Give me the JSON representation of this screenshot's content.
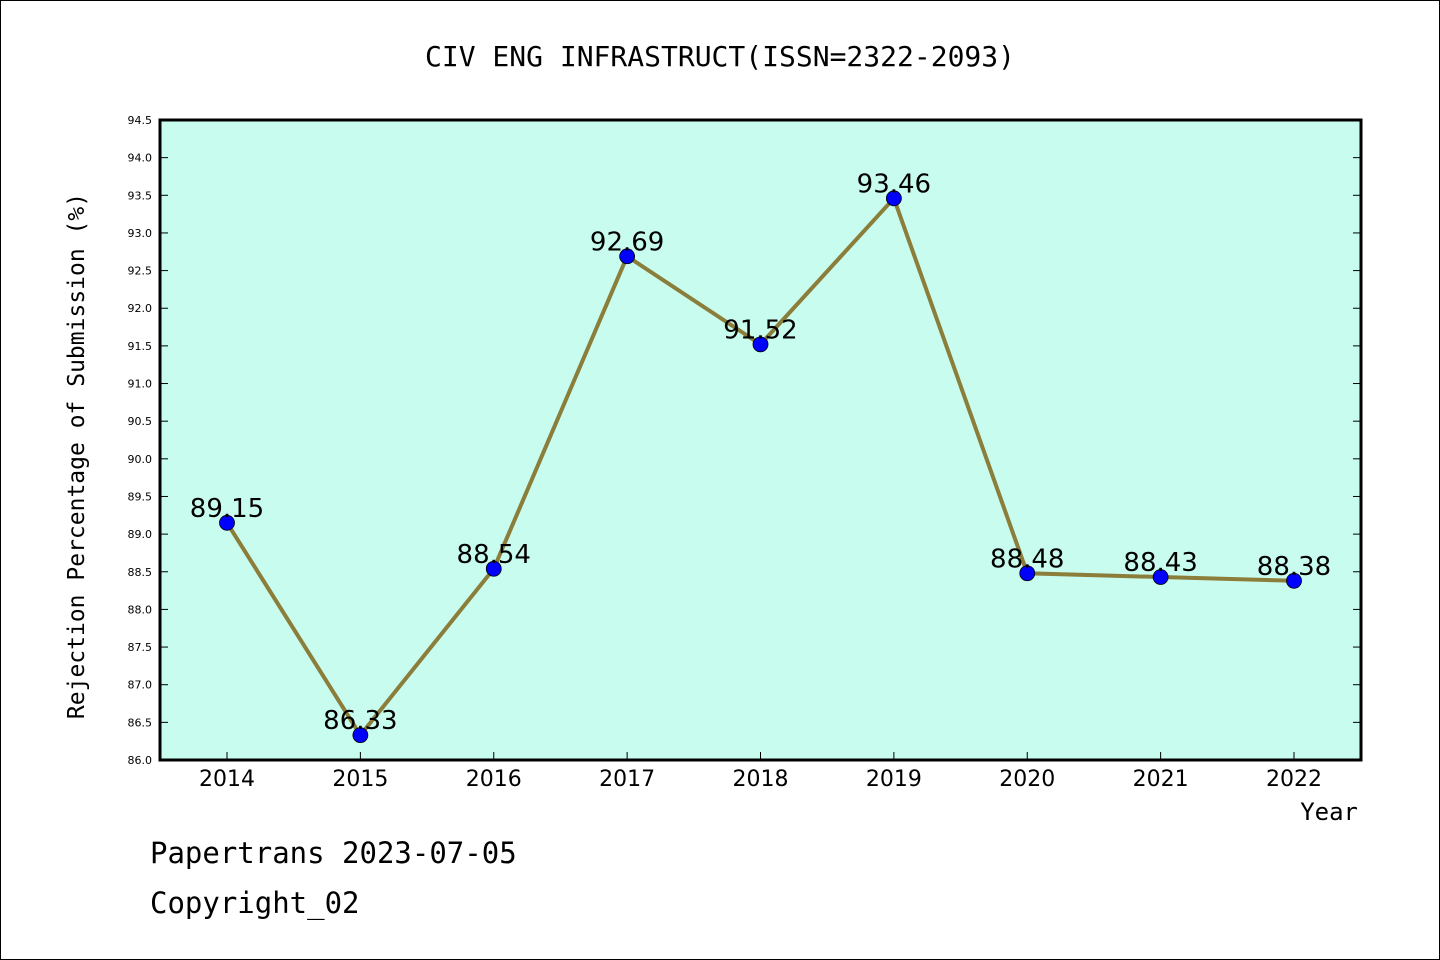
{
  "chart_data": {
    "type": "line",
    "title": "CIV ENG INFRASTRUCT(ISSN=2322-2093)",
    "xlabel": "Year",
    "ylabel": "Rejection Percentage of Submission (%)",
    "categories": [
      "2014",
      "2015",
      "2016",
      "2017",
      "2018",
      "2019",
      "2020",
      "2021",
      "2022"
    ],
    "series": [
      {
        "values": [
          89.15,
          86.33,
          88.54,
          92.69,
          91.52,
          93.46,
          88.48,
          88.43,
          88.38
        ],
        "data_labels": [
          "89.15",
          "86.33",
          "88.54",
          "92.69",
          "91.52",
          "93.46",
          "88.48",
          "88.43",
          "88.38"
        ]
      }
    ],
    "ylim": [
      86.0,
      94.5
    ],
    "yticks": [
      "86.0",
      "86.5",
      "87.0",
      "87.5",
      "88.0",
      "88.5",
      "89.0",
      "89.5",
      "90.0",
      "90.5",
      "91.0",
      "91.5",
      "92.0",
      "92.5",
      "93.0",
      "93.5",
      "94.0",
      "94.5"
    ],
    "grid": false,
    "colors": {
      "plot_background": "#c8fcee",
      "line": "#8b7d3a",
      "marker": "#0000ff"
    }
  },
  "footer": {
    "line1": "Papertrans 2023-07-05",
    "line2": "Copyright_02"
  }
}
